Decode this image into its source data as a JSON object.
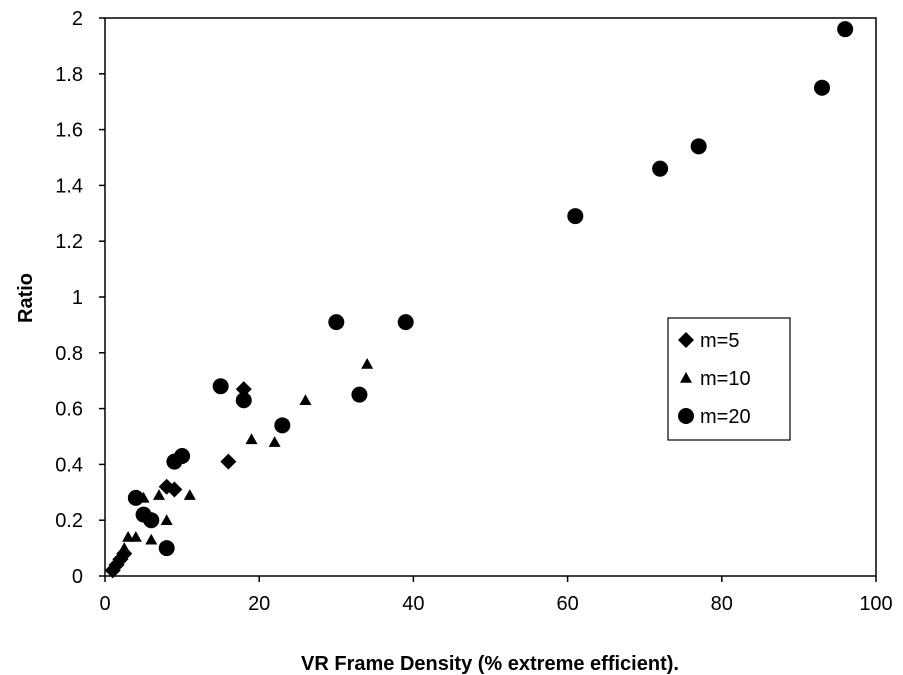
{
  "chart_data": {
    "type": "scatter",
    "title": "",
    "xlabel": "VR Frame Density (% extreme efficient).",
    "ylabel": "Ratio",
    "xlim": [
      0,
      100
    ],
    "ylim": [
      0,
      2
    ],
    "xticks": [
      "0",
      "20",
      "40",
      "60",
      "80",
      "100"
    ],
    "yticks": [
      "0",
      "0.2",
      "0.4",
      "0.6",
      "0.8",
      "1",
      "1.2",
      "1.4",
      "1.6",
      "1.8",
      "2"
    ],
    "grid": false,
    "legend_position": "right",
    "series": [
      {
        "name": "m=5",
        "marker": "diamond",
        "color": "#000000",
        "points": [
          [
            1,
            0.02
          ],
          [
            1.5,
            0.04
          ],
          [
            2,
            0.06
          ],
          [
            2.5,
            0.08
          ],
          [
            8,
            0.32
          ],
          [
            9,
            0.31
          ],
          [
            16,
            0.41
          ],
          [
            18,
            0.67
          ]
        ]
      },
      {
        "name": "m=10",
        "marker": "triangle",
        "color": "#000000",
        "points": [
          [
            1.5,
            0.05
          ],
          [
            2.5,
            0.1
          ],
          [
            3,
            0.14
          ],
          [
            4,
            0.14
          ],
          [
            5,
            0.28
          ],
          [
            6,
            0.13
          ],
          [
            7,
            0.29
          ],
          [
            8,
            0.2
          ],
          [
            11,
            0.29
          ],
          [
            19,
            0.49
          ],
          [
            22,
            0.48
          ],
          [
            26,
            0.63
          ],
          [
            34,
            0.76
          ]
        ]
      },
      {
        "name": "m=20",
        "marker": "circle",
        "color": "#000000",
        "points": [
          [
            4,
            0.28
          ],
          [
            5,
            0.22
          ],
          [
            6,
            0.2
          ],
          [
            8,
            0.1
          ],
          [
            9,
            0.41
          ],
          [
            10,
            0.43
          ],
          [
            15,
            0.68
          ],
          [
            18,
            0.63
          ],
          [
            23,
            0.54
          ],
          [
            30,
            0.91
          ],
          [
            33,
            0.65
          ],
          [
            39,
            0.91
          ],
          [
            61,
            1.29
          ],
          [
            72,
            1.46
          ],
          [
            77,
            1.54
          ],
          [
            93,
            1.75
          ],
          [
            96,
            1.96
          ]
        ]
      }
    ]
  }
}
